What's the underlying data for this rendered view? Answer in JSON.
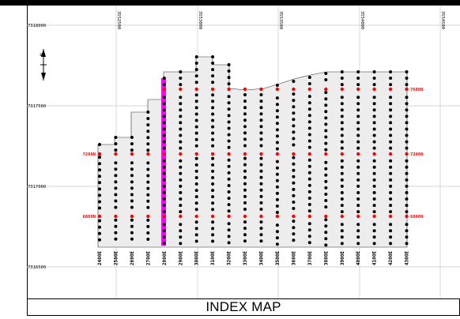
{
  "title": "INDEX MAP",
  "northings": [
    "7318000",
    "7317500",
    "7317000",
    "7316500"
  ],
  "eastings": [
    "3552500",
    "3553000",
    "3553500",
    "3554000",
    "3554500"
  ],
  "section_labels": [
    "7600N",
    "7200N",
    "6800N"
  ],
  "line_labels": [
    "2400E",
    "2500E",
    "2600E",
    "2700E",
    "2800E",
    "2900E",
    "3000E",
    "3100E",
    "3200E",
    "3300E",
    "3400E",
    "3500E",
    "3600E",
    "3700E",
    "3800E",
    "3900E",
    "4000E",
    "4100E",
    "4200E",
    "4300E"
  ],
  "north_arrow_label": "N",
  "colors": {
    "grid": "#c8c8c8",
    "polygon_fill": "#ededed",
    "drillhole": "#000000",
    "section_hole": "#ff0000",
    "section_label": "#ff0000",
    "highlight_line": "#ff00ff"
  }
}
